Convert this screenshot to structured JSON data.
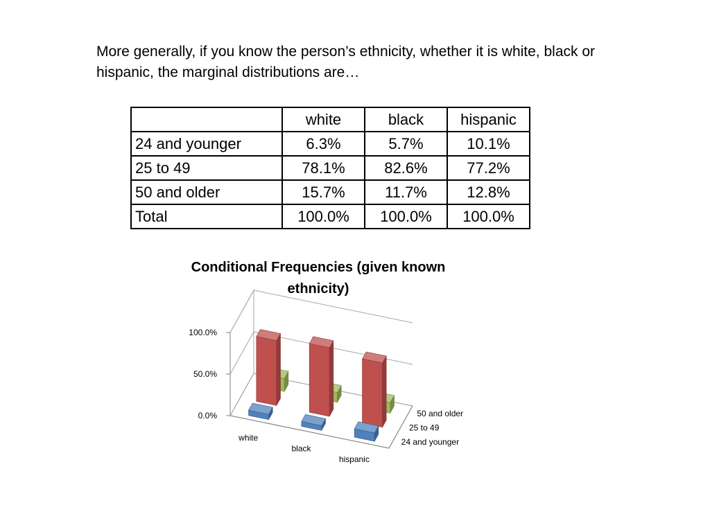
{
  "intro_text": "More generally, if you know the person’s ethnicity, whether it is white, black or hispanic, the marginal distributions are…",
  "table": {
    "columns": [
      "white",
      "black",
      "hispanic"
    ],
    "rows": [
      {
        "label": "24 and younger",
        "values": [
          "6.3%",
          "5.7%",
          "10.1%"
        ]
      },
      {
        "label": "25 to 49",
        "values": [
          "78.1%",
          "82.6%",
          "77.2%"
        ]
      },
      {
        "label": "50 and older",
        "values": [
          "15.7%",
          "11.7%",
          "12.8%"
        ]
      },
      {
        "label": "Total",
        "values": [
          "100.0%",
          "100.0%",
          "100.0%"
        ]
      }
    ]
  },
  "chart_data": {
    "type": "bar",
    "title": "Conditional Frequencies (given known ethnicity)",
    "categories": [
      "white",
      "black",
      "hispanic"
    ],
    "series": [
      {
        "name": "24 and younger",
        "values": [
          6.3,
          5.7,
          10.1
        ],
        "color": "#4f81bd"
      },
      {
        "name": "25 to 49",
        "values": [
          78.1,
          82.6,
          77.2
        ],
        "color": "#c0504d"
      },
      {
        "name": "50 and older",
        "values": [
          15.7,
          11.7,
          12.8
        ],
        "color": "#9bbb59"
      }
    ],
    "yticks": [
      "0.0%",
      "50.0%",
      "100.0%"
    ],
    "ylim": [
      0,
      100
    ],
    "grid": true,
    "legend": "right"
  }
}
